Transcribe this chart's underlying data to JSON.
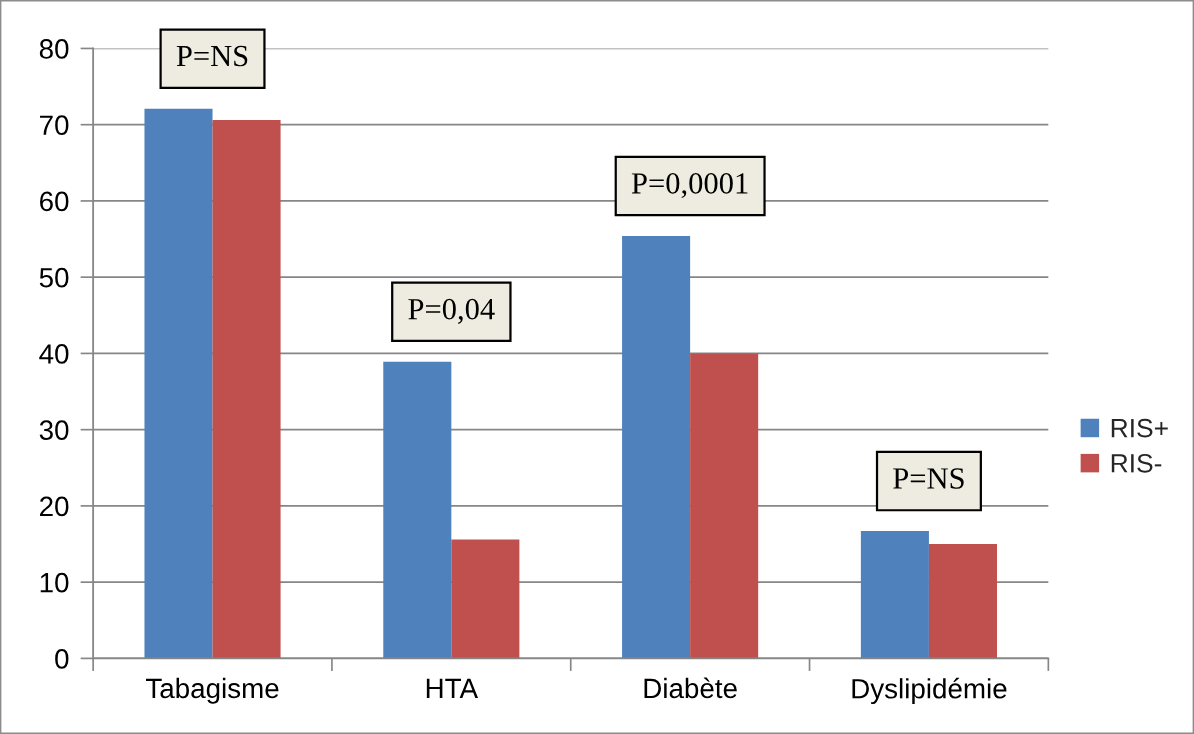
{
  "chart_data": {
    "type": "bar",
    "categories": [
      "Tabagisme",
      "HTA",
      "Diabète",
      "Dyslipidémie"
    ],
    "series": [
      {
        "name": "RIS+",
        "color": "#4f81bd",
        "values": [
          72.1,
          38.9,
          55.4,
          16.7
        ]
      },
      {
        "name": "RIS-",
        "color": "#c0504d",
        "values": [
          70.6,
          15.6,
          40.0,
          15.0
        ]
      }
    ],
    "ylim": [
      0,
      80
    ],
    "yticks": [
      0,
      10,
      20,
      30,
      40,
      50,
      60,
      70,
      80
    ],
    "grid": "y",
    "legend": "right",
    "annotations": [
      "P=NS",
      "P=0,04",
      "P=0,0001",
      "P=NS"
    ]
  }
}
